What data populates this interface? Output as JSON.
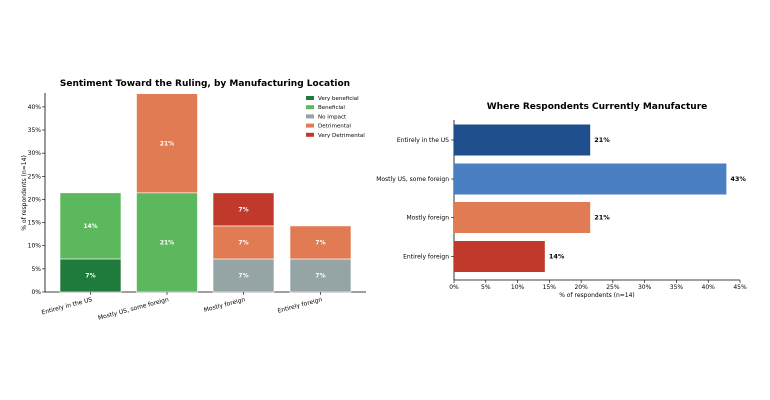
{
  "chart_data": [
    {
      "type": "bar",
      "stacked": true,
      "title": "Sentiment Toward the Ruling, by Manufacturing Location",
      "xlabel": "",
      "ylabel": "% of respondents (n=14)",
      "ylim": [
        0,
        43
      ],
      "yticks": [
        "0%",
        "5%",
        "10%",
        "15%",
        "20%",
        "25%",
        "30%",
        "35%",
        "40%"
      ],
      "grid": false,
      "legend_position": "top-right",
      "categories": [
        "Entirely in the US",
        "Mostly US, some foreign",
        "Mostly foreign",
        "Entirely foreign"
      ],
      "series": [
        {
          "name": "Very beneficial",
          "color": "#1e7b3c",
          "values": [
            7.14,
            0,
            0,
            0
          ],
          "labels": [
            "7%",
            "",
            "",
            ""
          ]
        },
        {
          "name": "Beneficial",
          "color": "#5cb85c",
          "values": [
            14.29,
            21.43,
            0,
            0
          ],
          "labels": [
            "14%",
            "21%",
            "",
            ""
          ]
        },
        {
          "name": "No impact",
          "color": "#95a5a6",
          "values": [
            0,
            0,
            7.14,
            7.14
          ],
          "labels": [
            "",
            "",
            "7%",
            "7%"
          ]
        },
        {
          "name": "Detrimental",
          "color": "#e07b53",
          "values": [
            0,
            21.43,
            7.14,
            7.14
          ],
          "labels": [
            "",
            "21%",
            "7%",
            "7%"
          ]
        },
        {
          "name": "Very Detrimental",
          "color": "#c0392b",
          "values": [
            0,
            0,
            7.14,
            0
          ],
          "labels": [
            "",
            "",
            "7%",
            ""
          ]
        }
      ]
    },
    {
      "type": "bar",
      "orientation": "horizontal",
      "title": "Where Respondents Currently Manufacture",
      "xlabel": "% of respondents (n=14)",
      "ylabel": "",
      "xlim": [
        0,
        45
      ],
      "xticks": [
        "0%",
        "5%",
        "10%",
        "15%",
        "20%",
        "25%",
        "30%",
        "35%",
        "40%",
        "45%"
      ],
      "grid": false,
      "categories": [
        "Entirely in the US",
        "Mostly US, some foreign",
        "Mostly foreign",
        "Entirely foreign"
      ],
      "values": [
        21.43,
        42.86,
        21.43,
        14.29
      ],
      "labels": [
        "21%",
        "43%",
        "21%",
        "14%"
      ],
      "colors": [
        "#1f4e8c",
        "#4a7fc1",
        "#e07b53",
        "#c0392b"
      ]
    }
  ]
}
